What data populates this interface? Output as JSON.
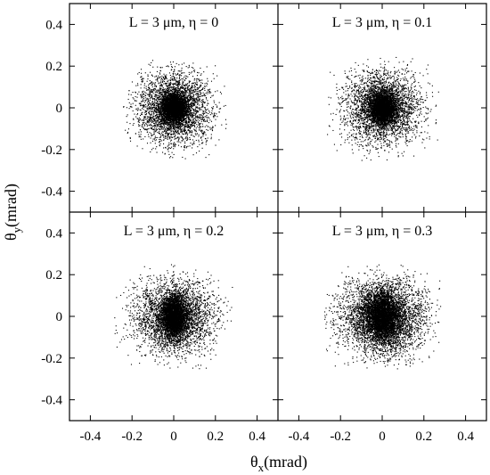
{
  "chart_data": {
    "type": "scatter",
    "layout": "2x2 grid of panels with shared axes",
    "xlabel": "θ",
    "xlabel_sub": "x",
    "xlabel_unit": "(mrad)",
    "ylabel": "θ",
    "ylabel_sub": "y",
    "ylabel_unit": "(mrad)",
    "xlim": [
      -0.5,
      0.5
    ],
    "ylim": [
      -0.5,
      0.5
    ],
    "xticks": [
      "-0.4",
      "-0.2",
      "0",
      "0.2",
      "0.4"
    ],
    "yticks": [
      "-0.4",
      "-0.2",
      "0",
      "0.2",
      "0.4"
    ],
    "x_tick_values": [
      -0.4,
      -0.2,
      0,
      0.2,
      0.4
    ],
    "y_tick_values": [
      -0.4,
      -0.2,
      0,
      0.2,
      0.4
    ],
    "grid": false,
    "legend": "none",
    "point_color": "#000000",
    "panels": [
      {
        "label": "L = 3 μm, η = 0",
        "eta": 0,
        "distribution": {
          "center": [
            0.0,
            0.0
          ],
          "core_sigma": [
            0.03,
            0.035
          ],
          "halo_sigma": [
            0.085,
            0.085
          ],
          "extent": [
            -0.25,
            0.25,
            -0.25,
            0.25
          ],
          "approx_points": 6000
        }
      },
      {
        "label": "L = 3 μm, η = 0.1",
        "eta": 0.1,
        "distribution": {
          "center": [
            0.0,
            0.0
          ],
          "core_sigma": [
            0.03,
            0.035
          ],
          "halo_sigma": [
            0.09,
            0.085
          ],
          "extent": [
            -0.27,
            0.27,
            -0.25,
            0.25
          ],
          "approx_points": 6000
        }
      },
      {
        "label": "L = 3 μm, η = 0.2",
        "eta": 0.2,
        "distribution": {
          "center": [
            0.0,
            0.0
          ],
          "core_sigma": [
            0.028,
            0.05
          ],
          "halo_sigma": [
            0.095,
            0.085
          ],
          "extent": [
            -0.3,
            0.28,
            -0.25,
            0.25
          ],
          "approx_points": 6000
        }
      },
      {
        "label": "L = 3 μm, η = 0.3",
        "eta": 0.3,
        "distribution": {
          "center": [
            0.0,
            0.0
          ],
          "core_sigma": [
            0.045,
            0.06
          ],
          "halo_sigma": [
            0.1,
            0.09
          ],
          "extent": [
            -0.28,
            0.28,
            -0.25,
            0.25
          ],
          "approx_points": 7000
        }
      }
    ]
  }
}
